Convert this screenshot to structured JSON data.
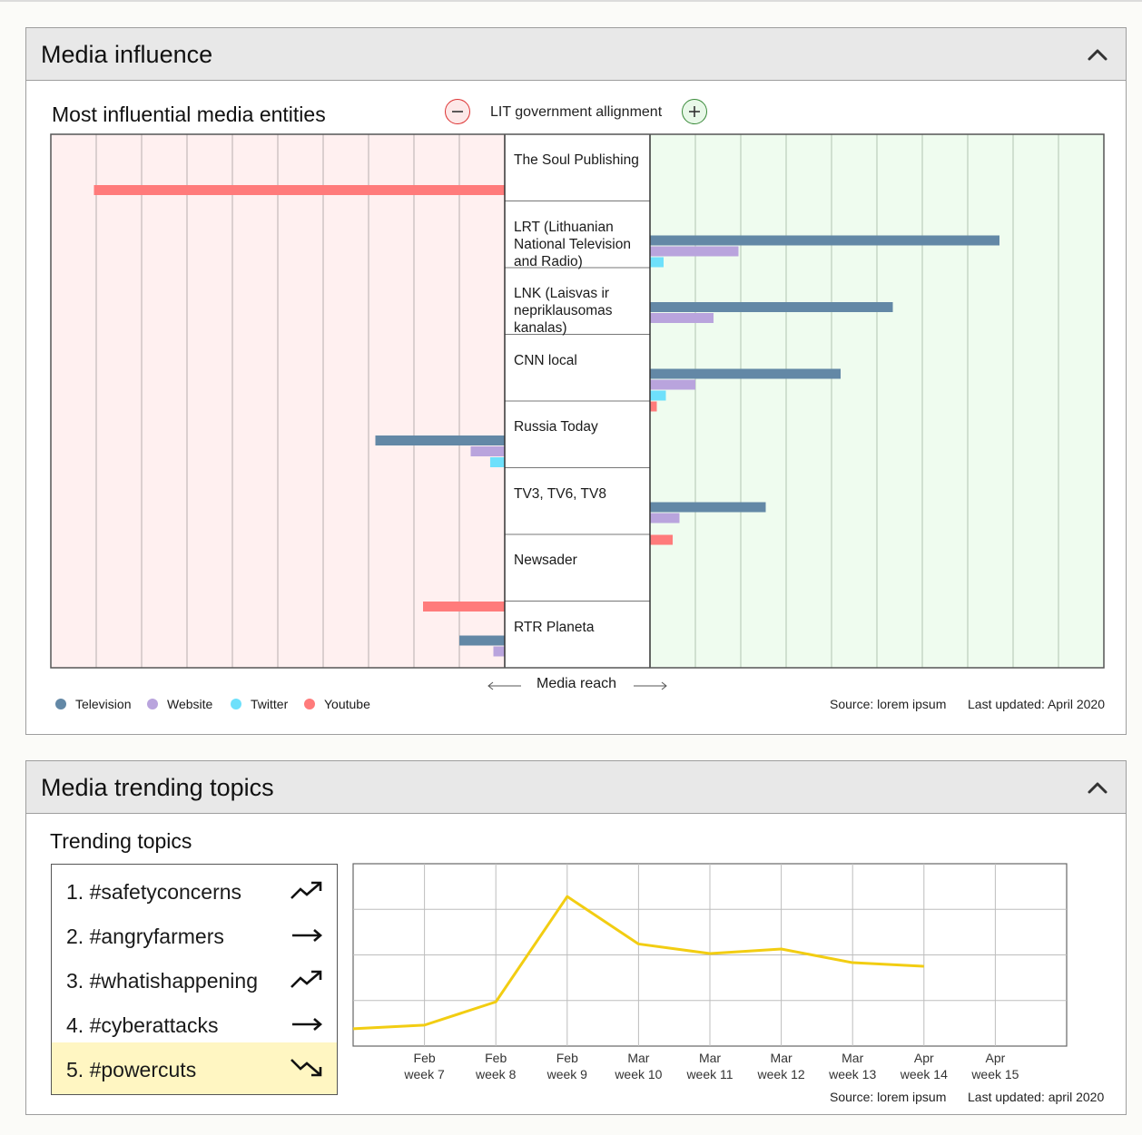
{
  "colors": {
    "television": "#6388a6",
    "website": "#b9a4dd",
    "twitter": "#6ee0fb",
    "youtube": "#ff7b7b",
    "negative_bg": "#fff0f0",
    "positive_bg": "#effcef",
    "trend_line": "#f2cd12",
    "highlight": "#fff6c2"
  },
  "influence_panel": {
    "title": "Media influence",
    "collapse_icon": "chevron-up-icon",
    "chart_title": "Most influential media entities",
    "alignment_label": "LIT government allignment",
    "minus_icon": "minus-circle-icon",
    "plus_icon": "plus-circle-icon",
    "axis_caption": "Media reach",
    "source": "Source: lorem ipsum",
    "updated": "Last updated: April 2020",
    "legend": [
      "Television",
      "Website",
      "Twitter",
      "Youtube"
    ]
  },
  "trending_panel": {
    "title": "Media trending topics",
    "collapse_icon": "chevron-up-icon",
    "subtitle": "Trending topics",
    "source": "Source: lorem ipsum",
    "updated": "Last updated: april 2020",
    "topics": [
      {
        "label": "1. #safetyconcerns",
        "trend": "trending-up-icon",
        "highlighted": false
      },
      {
        "label": "2. #angryfarmers",
        "trend": "arrow-right-icon",
        "highlighted": false
      },
      {
        "label": "3. #whatishappening",
        "trend": "trending-up-icon",
        "highlighted": false
      },
      {
        "label": "4. #cyberattacks",
        "trend": "arrow-right-icon",
        "highlighted": false
      },
      {
        "label": "5. #powercuts",
        "trend": "trending-down-icon",
        "highlighted": true
      }
    ]
  },
  "chart_data": [
    {
      "type": "bar",
      "title": "Most influential media entities",
      "xlabel": "Media reach",
      "orientation": "horizontal-diverging",
      "scale": {
        "negative_max": 10,
        "positive_max": 10
      },
      "categories": [
        "The Soul Publishing",
        "LRT (Lithuanian National Television and Radio)",
        "LNK (Laisvas ir nepriklausomas kanalas)",
        "CNN local",
        "Russia Today",
        "TV3, TV6, TV8",
        "Newsader",
        "RTR Planeta"
      ],
      "series": [
        {
          "name": "Television",
          "values": [
            0,
            7.7,
            5.35,
            4.2,
            -2.85,
            2.55,
            0,
            -1.0
          ]
        },
        {
          "name": "Website",
          "values": [
            0,
            1.95,
            1.4,
            1.0,
            -0.75,
            0.65,
            0,
            -0.25
          ]
        },
        {
          "name": "Twitter",
          "values": [
            0,
            0.3,
            0,
            0.35,
            -0.32,
            0,
            0,
            0
          ]
        },
        {
          "name": "Youtube",
          "values": [
            -9.05,
            0,
            0,
            0.15,
            0,
            0.5,
            -1.8,
            0
          ]
        }
      ]
    },
    {
      "type": "line",
      "categories": [
        "Feb week 7",
        "Feb week 8",
        "Feb week 9",
        "Mar week 10",
        "Mar week 11",
        "Mar week 12",
        "Mar week 13",
        "Apr week 14",
        "Apr week 15"
      ],
      "x_tick_labels": [
        [
          "Feb",
          "week 7"
        ],
        [
          "Feb",
          "week 8"
        ],
        [
          "Feb",
          "week 9"
        ],
        [
          "Mar",
          "week 10"
        ],
        [
          "Mar",
          "week 11"
        ],
        [
          "Mar",
          "week 12"
        ],
        [
          "Mar",
          "week 13"
        ],
        [
          "Apr",
          "week 14"
        ],
        [
          "Apr",
          "week 15"
        ]
      ],
      "ylim": [
        0,
        4
      ],
      "grid": true,
      "series": [
        {
          "values": [
            0.38,
            0.46,
            0.97,
            3.28,
            2.24,
            2.03,
            2.13,
            1.83,
            1.75
          ]
        }
      ]
    }
  ]
}
